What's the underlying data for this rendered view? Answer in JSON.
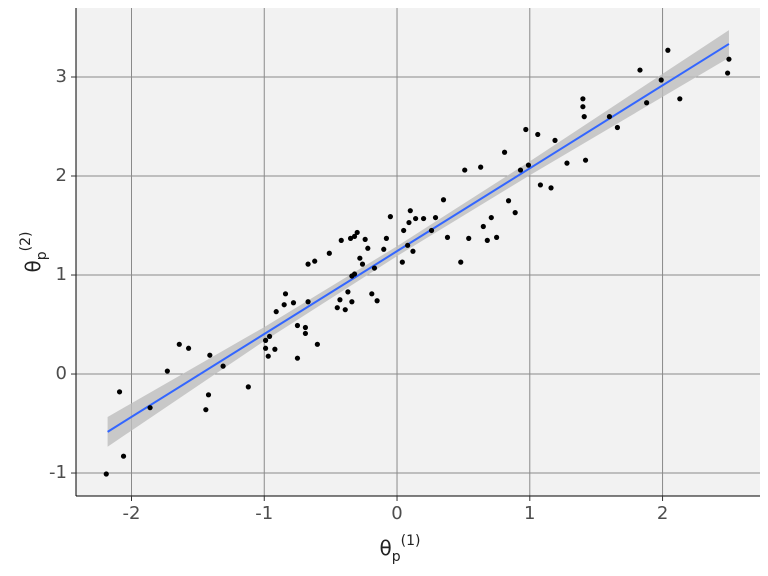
{
  "chart_data": {
    "type": "scatter",
    "x_label": {
      "base": "θ",
      "subscript": "p",
      "superscript": "(1)"
    },
    "y_label": {
      "base": "θ",
      "subscript": "p",
      "superscript": "(2)"
    },
    "xlim": [
      -2.418,
      2.734
    ],
    "ylim": [
      -1.232,
      3.697
    ],
    "xticks": [
      -2,
      -1,
      0,
      1,
      2
    ],
    "yticks": [
      -1,
      0,
      1,
      2,
      3
    ],
    "grid": true,
    "color": "#000000",
    "x": [
      -2.19,
      -2.09,
      -2.06,
      -1.86,
      -1.73,
      -1.64,
      -1.57,
      -1.41,
      -1.31,
      -1.42,
      -1.44,
      -1.12,
      -0.99,
      -0.99,
      -0.97,
      -0.92,
      -0.96,
      -0.91,
      -0.85,
      -0.84,
      -0.78,
      -0.75,
      -0.75,
      -0.69,
      -0.69,
      -0.67,
      -0.67,
      -0.62,
      -0.6,
      -0.51,
      -0.45,
      -0.42,
      -0.43,
      -0.39,
      -0.37,
      -0.35,
      -0.34,
      -0.34,
      -0.32,
      -0.32,
      -0.3,
      -0.28,
      -0.26,
      -0.24,
      -0.22,
      -0.19,
      -0.17,
      -0.15,
      -0.1,
      -0.08,
      -0.05,
      0.04,
      0.05,
      0.08,
      0.09,
      0.1,
      0.12,
      0.14,
      0.2,
      0.26,
      0.29,
      0.35,
      0.38,
      0.48,
      0.51,
      0.54,
      0.63,
      0.65,
      0.68,
      0.71,
      0.75,
      0.81,
      0.84,
      0.89,
      0.93,
      0.97,
      0.99,
      1.06,
      1.08,
      1.16,
      1.19,
      1.28,
      1.4,
      1.4,
      1.41,
      1.42,
      1.6,
      1.66,
      1.83,
      1.88,
      1.99,
      2.04,
      2.13,
      2.5,
      2.49
    ],
    "values": [
      -1.01,
      -0.18,
      -0.83,
      -0.34,
      0.03,
      0.3,
      0.26,
      0.19,
      0.08,
      -0.21,
      -0.36,
      -0.13,
      0.34,
      0.26,
      0.18,
      0.25,
      0.38,
      0.63,
      0.7,
      0.81,
      0.72,
      0.49,
      0.16,
      0.47,
      0.41,
      0.73,
      1.11,
      1.14,
      0.3,
      1.22,
      0.67,
      1.35,
      0.75,
      0.65,
      0.83,
      1.37,
      0.73,
      0.99,
      1.39,
      1.01,
      1.43,
      1.17,
      1.11,
      1.36,
      1.27,
      0.81,
      1.07,
      0.74,
      1.26,
      1.37,
      1.59,
      1.13,
      1.45,
      1.3,
      1.53,
      1.65,
      1.24,
      1.57,
      1.57,
      1.45,
      1.58,
      1.76,
      1.38,
      1.13,
      2.06,
      1.37,
      2.09,
      1.49,
      1.35,
      1.58,
      1.38,
      2.24,
      1.75,
      1.63,
      2.06,
      2.47,
      2.11,
      2.42,
      1.91,
      1.88,
      2.36,
      2.13,
      2.78,
      2.7,
      2.6,
      2.16,
      2.6,
      2.49,
      3.07,
      2.74,
      2.97,
      3.27,
      2.78,
      3.18,
      3.04
    ],
    "fit": {
      "color": "#3366ff",
      "band_color": "#bdbdbd",
      "x": [
        -2.18,
        -1,
        0,
        1,
        2.5
      ],
      "values": [
        -0.584,
        0.404,
        1.241,
        2.078,
        3.334
      ],
      "lower": [
        -0.734,
        0.334,
        1.191,
        2.008,
        3.194
      ],
      "upper": [
        -0.434,
        0.474,
        1.291,
        2.148,
        3.474
      ]
    }
  }
}
